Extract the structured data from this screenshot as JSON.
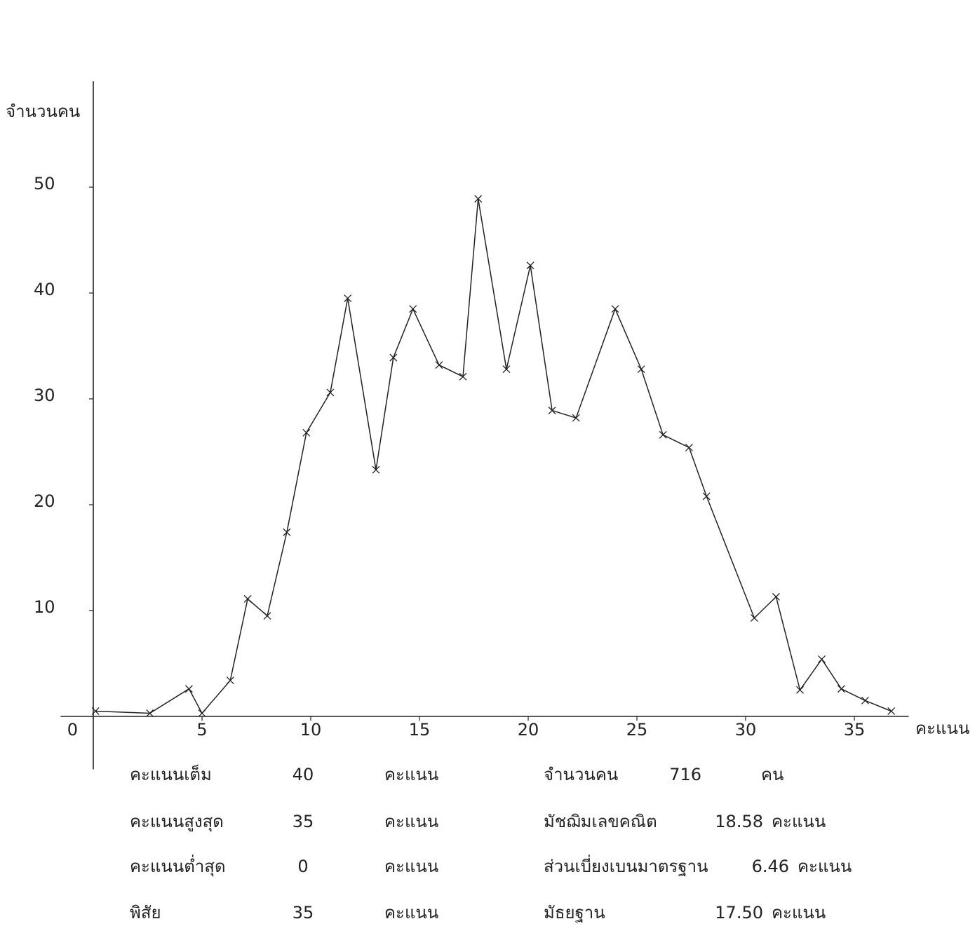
{
  "chart_data": {
    "type": "line",
    "y_label": "จำนวนคน",
    "x_label": "คะแนน",
    "x": [
      0.1,
      2.6,
      4.4,
      5.0,
      6.3,
      7.1,
      8.0,
      8.9,
      9.8,
      10.9,
      11.7,
      13.0,
      13.8,
      14.7,
      15.9,
      17.0,
      17.7,
      19.0,
      20.1,
      21.1,
      22.2,
      24.0,
      25.2,
      26.2,
      27.4,
      28.2,
      30.4,
      31.4,
      32.5,
      33.5,
      34.4,
      35.5,
      36.7
    ],
    "series": [
      {
        "color": "#222222",
        "values": [
          0.5,
          0.3,
          2.6,
          0.3,
          3.4,
          11.1,
          9.5,
          17.4,
          26.8,
          30.6,
          39.5,
          23.3,
          33.9,
          38.5,
          33.2,
          32.1,
          48.9,
          32.8,
          42.6,
          28.9,
          28.2,
          38.5,
          32.8,
          26.6,
          25.4,
          20.8,
          9.3,
          11.3,
          2.5,
          5.4,
          2.6,
          1.5,
          0.5
        ]
      }
    ],
    "xlim": [
      -1.5,
      37.5
    ],
    "ylim": [
      -5,
      60
    ],
    "xticks": [
      0,
      5,
      10,
      15,
      20,
      25,
      30,
      35
    ],
    "yticks": [
      10,
      20,
      30,
      40,
      50
    ],
    "summary_left": [
      [
        "คะแนนเต็ม",
        "40",
        "คะแนน"
      ],
      [
        "คะแนนสูงสุด",
        "35",
        "คะแนน"
      ],
      [
        "คะแนนต่ำสุด",
        "0",
        "คะแนน"
      ],
      [
        "พิสัย",
        "35",
        "คะแนน"
      ]
    ],
    "summary_right": [
      [
        "จำนวนคน",
        "716",
        "คน"
      ],
      [
        "มัชฌิมเลขคณิต",
        "18.58",
        "คะแนน"
      ],
      [
        "ส่วนเบี่ยงเบนมาตรฐาน",
        "6.46",
        "คะแนน"
      ],
      [
        "มัธยฐาน",
        "17.50",
        "คะแนน"
      ]
    ]
  }
}
